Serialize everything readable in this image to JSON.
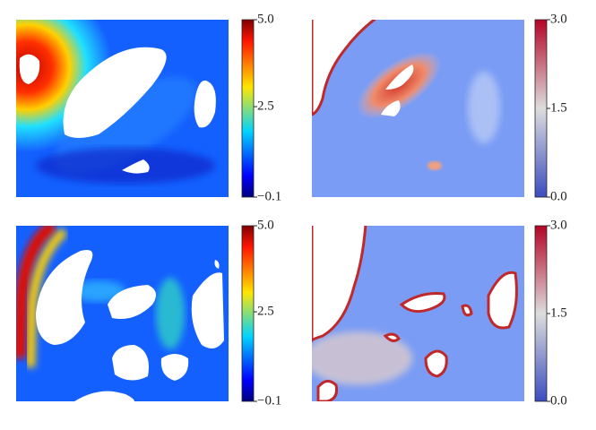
{
  "chart_data": [
    {
      "type": "heatmap",
      "colormap": "jet",
      "clim": [
        -0.1,
        5.0
      ],
      "cticks": [
        {
          "value": -0.1,
          "label": "−0.1"
        },
        2.5,
        {
          "value": 5.0,
          "label": "5.0"
        }
      ]
    },
    {
      "type": "heatmap",
      "colormap": "coolwarm",
      "clim": [
        0.0,
        3.0
      ],
      "cticks": [
        {
          "value": 0.0,
          "label": "0.0"
        },
        1.5,
        {
          "value": 3.0,
          "label": "3.0"
        }
      ]
    },
    {
      "type": "heatmap",
      "colormap": "jet",
      "clim": [
        -0.1,
        5.0
      ],
      "cticks": [
        {
          "value": -0.1,
          "label": "−0.1"
        },
        2.5,
        {
          "value": 5.0,
          "label": "5.0"
        }
      ]
    },
    {
      "type": "heatmap",
      "colormap": "coolwarm",
      "clim": [
        0.0,
        3.0
      ],
      "cticks": [
        {
          "value": 0.0,
          "label": "0.0"
        },
        1.5,
        {
          "value": 3.0,
          "label": "3.0"
        }
      ]
    }
  ]
}
